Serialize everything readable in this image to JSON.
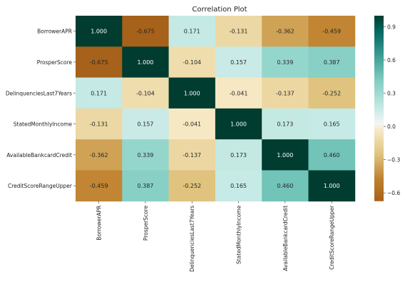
{
  "chart_data": {
    "type": "heatmap",
    "title": "Correlation Plot",
    "xlabel": "",
    "ylabel": "",
    "categories": [
      "BorrowerAPR",
      "ProsperScore",
      "DelinquenciesLast7Years",
      "StatedMonthlyIncome",
      "AvailableBankcardCredit",
      "CreditScoreRangeUpper"
    ],
    "matrix": [
      [
        1.0,
        -0.675,
        0.171,
        -0.131,
        -0.362,
        -0.459
      ],
      [
        -0.675,
        1.0,
        -0.104,
        0.157,
        0.339,
        0.387
      ],
      [
        0.171,
        -0.104,
        1.0,
        -0.041,
        -0.137,
        -0.252
      ],
      [
        -0.131,
        0.157,
        -0.041,
        1.0,
        0.173,
        0.165
      ],
      [
        -0.362,
        0.339,
        -0.137,
        0.173,
        1.0,
        0.46
      ],
      [
        -0.459,
        0.387,
        -0.252,
        0.165,
        0.46,
        1.0
      ]
    ],
    "annotation_format": "3 decimals",
    "colormap": "BrBG",
    "color_range": [
      -0.675,
      1.0
    ],
    "colorbar_ticks": [
      {
        "value": 0.9,
        "label": "0.9"
      },
      {
        "value": 0.6,
        "label": "0.6"
      },
      {
        "value": 0.3,
        "label": "0.3"
      },
      {
        "value": 0.0,
        "label": "0.0"
      },
      {
        "value": -0.3,
        "label": "−0.3"
      },
      {
        "value": -0.6,
        "label": "−0.6"
      }
    ],
    "grid": false,
    "legend": "colorbar-right"
  }
}
